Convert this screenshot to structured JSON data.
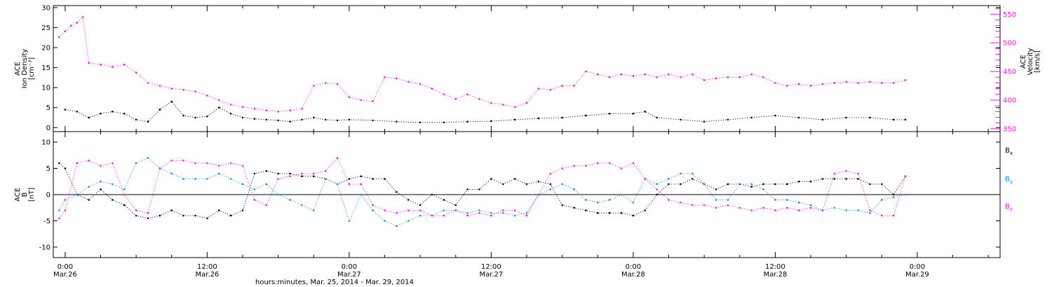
{
  "colors": {
    "black": "#000000",
    "magenta": "#e817e3",
    "blue": "#1a85e0"
  },
  "x_axis": {
    "label": "hours:minutes, Mar. 25, 2014 - Mar. 29, 2014",
    "range_hours": [
      -1,
      79
    ],
    "ticks": [
      {
        "hour": 0,
        "time": "0:00",
        "date": "Mar.26"
      },
      {
        "hour": 12,
        "time": "12:00",
        "date": "Mar.26"
      },
      {
        "hour": 24,
        "time": "0:00",
        "date": "Mar.27"
      },
      {
        "hour": 36,
        "time": "12:00",
        "date": "Mar.27"
      },
      {
        "hour": 48,
        "time": "0:00",
        "date": "Mar.28"
      },
      {
        "hour": 60,
        "time": "12:00",
        "date": "Mar.28"
      },
      {
        "hour": 72,
        "time": "0:00",
        "date": "Mar.29"
      }
    ],
    "minor_step_hours": 3
  },
  "chart_data": [
    {
      "type": "scatter",
      "panel": "top",
      "left_axis": {
        "label_lines": [
          "ACE",
          "Ion Density",
          "[cm⁻³]"
        ],
        "ylim": [
          -1,
          30.5
        ],
        "ticks": [
          0,
          5,
          10,
          15,
          20,
          25,
          30
        ]
      },
      "right_axis": {
        "label_lines": [
          "ACE",
          "Velocity",
          "[km/s]"
        ],
        "ylim": [
          345,
          565
        ],
        "ticks": [
          350,
          400,
          450,
          500,
          550
        ],
        "color": "#e817e3"
      },
      "series": [
        {
          "name": "Ion Density",
          "axis": "left",
          "color": "#000000",
          "x": [
            0,
            1,
            2,
            3,
            4,
            5,
            6,
            7,
            8,
            9,
            10,
            11,
            12,
            13,
            14,
            15,
            16,
            17,
            18,
            19,
            20,
            21,
            22,
            23,
            24,
            26,
            28,
            30,
            32,
            34,
            36,
            38,
            40,
            42,
            44,
            46,
            48,
            49,
            50,
            52,
            54,
            56,
            58,
            60,
            62,
            64,
            66,
            68,
            70,
            71
          ],
          "y": [
            4.5,
            4,
            2.5,
            3.5,
            4,
            3.5,
            2,
            1.5,
            4.5,
            6.5,
            3,
            2.5,
            2.8,
            5,
            3.5,
            2.5,
            2.2,
            2,
            1.8,
            1.5,
            2,
            2.5,
            2,
            1.8,
            2,
            1.8,
            1.5,
            1.3,
            1.3,
            1.5,
            1.6,
            2,
            2.3,
            2.5,
            3,
            3.5,
            3.5,
            4,
            2.5,
            2,
            1.5,
            2,
            2.5,
            3,
            2.5,
            2,
            2.5,
            2.5,
            2,
            2
          ]
        },
        {
          "name": "Velocity",
          "axis": "right",
          "color": "#e817e3",
          "x": [
            -0.5,
            0,
            0.5,
            1,
            1.5,
            2,
            3,
            4,
            5,
            6,
            7,
            8,
            9,
            10,
            11,
            12,
            13,
            14,
            15,
            16,
            17,
            18,
            19,
            20,
            21,
            22,
            23,
            24,
            25,
            26,
            27,
            28,
            29,
            30,
            31,
            32,
            33,
            34,
            35,
            36,
            37,
            38,
            39,
            40,
            41,
            42,
            43,
            44,
            45,
            46,
            47,
            48,
            49,
            50,
            51,
            52,
            53,
            54,
            55,
            56,
            57,
            58,
            59,
            60,
            61,
            62,
            63,
            64,
            65,
            66,
            67,
            68,
            69,
            70,
            71
          ],
          "y": [
            510,
            520,
            530,
            535,
            545,
            465,
            462,
            458,
            462,
            448,
            430,
            425,
            420,
            418,
            415,
            408,
            400,
            392,
            388,
            385,
            382,
            380,
            382,
            385,
            425,
            430,
            428,
            405,
            400,
            398,
            440,
            438,
            432,
            428,
            420,
            410,
            402,
            410,
            402,
            395,
            392,
            388,
            395,
            420,
            418,
            425,
            425,
            450,
            445,
            440,
            445,
            442,
            445,
            440,
            445,
            440,
            445,
            435,
            438,
            440,
            440,
            445,
            440,
            430,
            425,
            428,
            425,
            428,
            430,
            432,
            430,
            432,
            430,
            430,
            435
          ]
        }
      ]
    },
    {
      "type": "scatter",
      "panel": "bottom",
      "left_axis": {
        "label_lines": [
          "ACE",
          "B",
          "[nT]"
        ],
        "ylim": [
          -12,
          12
        ],
        "ticks": [
          -10,
          -5,
          0,
          5,
          10
        ]
      },
      "zero_line": true,
      "series": [
        {
          "name": "Bx",
          "label_main": "B",
          "label_sub": "x",
          "color": "#000000",
          "x": [
            -0.5,
            0,
            1,
            2,
            3,
            4,
            5,
            6,
            7,
            8,
            9,
            10,
            11,
            12,
            13,
            14,
            15,
            16,
            17,
            18,
            19,
            20,
            21,
            22,
            23,
            24,
            25,
            26,
            27,
            28,
            29,
            30,
            31,
            32,
            33,
            34,
            35,
            36,
            37,
            38,
            39,
            40,
            41,
            42,
            43,
            44,
            45,
            46,
            47,
            48,
            49,
            50,
            51,
            52,
            53,
            54,
            55,
            56,
            57,
            58,
            59,
            60,
            61,
            62,
            63,
            64,
            65,
            66,
            67,
            68,
            69,
            70,
            71
          ],
          "y": [
            6,
            5,
            0,
            -1,
            1,
            -1,
            -2,
            -4,
            -4.5,
            -4,
            -3,
            -4,
            -4,
            -4.5,
            -3,
            -4,
            -3,
            4,
            4.5,
            4,
            4,
            3.5,
            3.5,
            3,
            2,
            3,
            3.5,
            3,
            3,
            0.5,
            -1,
            -2,
            0,
            -1,
            -2,
            1,
            1,
            3,
            2,
            3,
            2,
            2.5,
            2,
            -2,
            -2.5,
            -3,
            -3.5,
            -3.5,
            -3.5,
            -4,
            -3,
            0,
            2,
            2,
            3,
            2,
            1,
            2,
            2,
            1.5,
            2,
            2,
            2,
            2.5,
            2.5,
            3,
            3,
            3,
            3,
            2,
            2,
            0,
            3.5
          ]
        },
        {
          "name": "By",
          "label_main": "B",
          "label_sub": "y",
          "color": "#1a85e0",
          "x": [
            -0.5,
            0,
            1,
            2,
            3,
            4,
            5,
            6,
            7,
            8,
            9,
            10,
            11,
            12,
            13,
            14,
            15,
            16,
            17,
            18,
            19,
            20,
            21,
            22,
            23,
            24,
            25,
            26,
            27,
            28,
            29,
            30,
            31,
            32,
            33,
            34,
            35,
            36,
            37,
            38,
            39,
            40,
            41,
            42,
            43,
            44,
            45,
            46,
            47,
            48,
            49,
            50,
            51,
            52,
            53,
            54,
            55,
            56,
            57,
            58,
            59,
            60,
            61,
            62,
            63,
            64,
            65,
            66,
            67,
            68,
            69,
            70,
            71
          ],
          "y": [
            -3,
            -1,
            0,
            1.5,
            2.5,
            2,
            1,
            6,
            7,
            5,
            4,
            3,
            3,
            3,
            4,
            3,
            2,
            1,
            2,
            0,
            -1,
            -2,
            -3,
            3,
            2,
            -5,
            0,
            -3,
            -5,
            -6,
            -5,
            -4,
            -4,
            -3,
            -3,
            -3.5,
            -3,
            -3.5,
            -3.5,
            -4,
            -3.5,
            0,
            1,
            2,
            1,
            -1,
            -1.5,
            -1,
            0,
            -1.5,
            3,
            2,
            3,
            4,
            4,
            2,
            -1,
            -1,
            2,
            2,
            1,
            -1,
            -1,
            -1.5,
            -2,
            -3,
            -2.5,
            -3,
            -3,
            -3.5,
            -1,
            -0.5,
            0
          ]
        },
        {
          "name": "Bz",
          "label_main": "B",
          "label_sub": "z",
          "color": "#e817e3",
          "x": [
            -0.5,
            0,
            1,
            2,
            3,
            4,
            5,
            6,
            7,
            8,
            9,
            10,
            11,
            12,
            13,
            14,
            15,
            16,
            17,
            18,
            19,
            20,
            21,
            22,
            23,
            24,
            25,
            26,
            27,
            28,
            29,
            30,
            31,
            32,
            33,
            34,
            35,
            36,
            37,
            38,
            39,
            40,
            41,
            42,
            43,
            44,
            45,
            46,
            47,
            48,
            49,
            50,
            51,
            52,
            53,
            54,
            55,
            56,
            57,
            58,
            59,
            60,
            61,
            62,
            63,
            64,
            65,
            66,
            67,
            68,
            69,
            70,
            71
          ],
          "y": [
            -4.5,
            -3,
            6,
            6.5,
            5.5,
            6,
            0,
            -3,
            -3.5,
            5,
            6.5,
            6.5,
            6,
            6,
            5.5,
            6,
            5.5,
            -1,
            -2,
            3,
            3.5,
            4,
            4,
            4.5,
            7,
            2,
            2,
            -2,
            -3,
            -3.5,
            -3,
            -3,
            -4,
            -4,
            -3,
            -4,
            -3.5,
            -4,
            -3,
            -3,
            -4,
            0,
            4,
            5,
            5.5,
            5.5,
            6,
            6,
            5,
            6,
            3,
            1,
            -1,
            -1.5,
            -2,
            -2,
            -2.5,
            -2,
            -2.5,
            -3,
            -2.5,
            -3,
            -2.5,
            -3,
            -2.5,
            -3,
            4,
            4.5,
            4,
            -3,
            -4,
            -4,
            3.5
          ]
        }
      ]
    }
  ]
}
